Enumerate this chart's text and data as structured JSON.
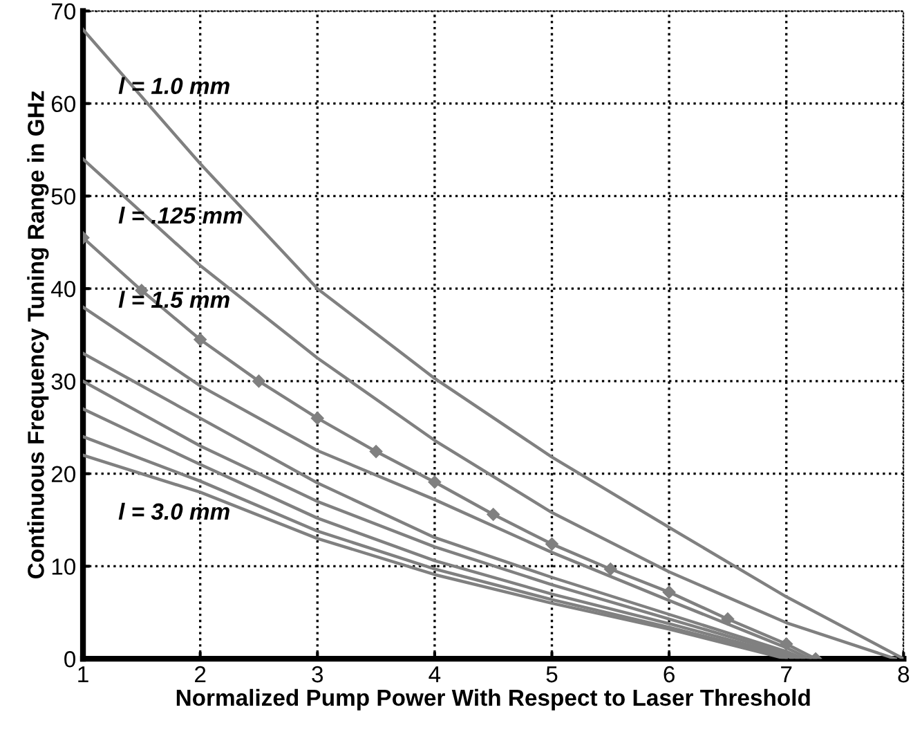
{
  "chart_data": {
    "type": "line",
    "xlabel": "Normalized Pump Power With Respect to Laser Threshold",
    "ylabel": "Continuous Frequency Tuning Range in GHz",
    "xlim": [
      1,
      8
    ],
    "ylim": [
      0,
      70
    ],
    "xticks": [
      1,
      2,
      3,
      4,
      5,
      6,
      7,
      8
    ],
    "yticks": [
      0,
      10,
      20,
      30,
      40,
      50,
      60,
      70
    ],
    "grid": true,
    "line_style": "solid",
    "marker": "none",
    "series": [
      {
        "color": "#808080",
        "x": [
          1,
          2,
          3,
          4,
          5,
          6,
          7,
          8
        ],
        "values": [
          68,
          53.5,
          40,
          30.3,
          21.8,
          14.2,
          6.7,
          0
        ]
      },
      {
        "color": "#808080",
        "x": [
          1,
          2,
          3,
          4,
          5,
          6,
          7,
          7.93
        ],
        "values": [
          54,
          42.5,
          32.5,
          23.6,
          15.8,
          9.4,
          3.9,
          0
        ]
      },
      {
        "color": "#808080",
        "marker": "diamond",
        "x": [
          1,
          1.5,
          2,
          2.5,
          3,
          3.5,
          4,
          4.5,
          5,
          5.5,
          6,
          6.5,
          7,
          7.25
        ],
        "values": [
          45.5,
          39.8,
          34.5,
          30,
          26,
          22.4,
          19.1,
          15.6,
          12.4,
          9.7,
          7.2,
          4.3,
          1.6,
          0
        ]
      },
      {
        "color": "#808080",
        "x": [
          1,
          2,
          3,
          4,
          5,
          6,
          7,
          7.2
        ],
        "values": [
          38,
          29.5,
          22.5,
          17.2,
          11.5,
          6.3,
          1.2,
          0
        ]
      },
      {
        "color": "#808080",
        "x": [
          1,
          2,
          3,
          4,
          5,
          6,
          7,
          7.15
        ],
        "values": [
          33,
          26,
          19,
          13.1,
          8.8,
          4.8,
          0.8,
          0
        ]
      },
      {
        "color": "#808080",
        "x": [
          1,
          2,
          3,
          4,
          5,
          6,
          7,
          7.1
        ],
        "values": [
          30,
          23,
          17,
          12.1,
          8,
          4.3,
          0.6,
          0
        ]
      },
      {
        "color": "#808080",
        "x": [
          1,
          2,
          3,
          4,
          5,
          6,
          7,
          7.05
        ],
        "values": [
          27,
          21,
          15.2,
          10.6,
          7,
          3.8,
          0.4,
          0
        ]
      },
      {
        "color": "#808080",
        "x": [
          1,
          2,
          3,
          4,
          5,
          6,
          7,
          7
        ],
        "values": [
          24,
          19.2,
          13.8,
          9.7,
          6.4,
          3.4,
          0.2,
          0
        ]
      },
      {
        "color": "#808080",
        "x": [
          1,
          2,
          3,
          4,
          5,
          6,
          7
        ],
        "values": [
          22,
          18,
          13,
          9.1,
          6,
          3.2,
          0
        ]
      }
    ],
    "annotations": [
      "l = 1.0 mm",
      "l = .125 mm",
      "l = 1.5 mm",
      "l = 3.0 mm"
    ]
  }
}
